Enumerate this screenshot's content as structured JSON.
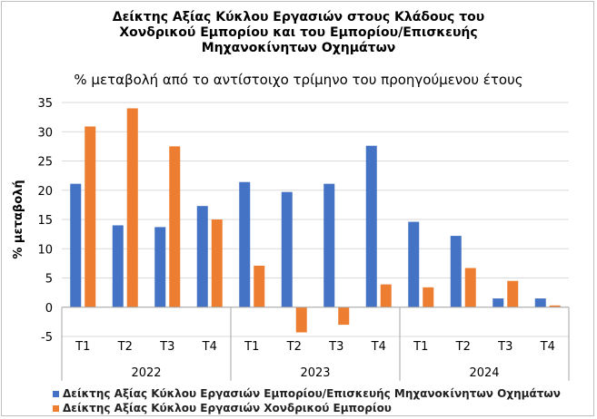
{
  "chart_data": {
    "type": "bar",
    "title_lines": [
      "Δείκτης Αξίας  Κύκλου Εργασιών στους Κλάδους του",
      "Χονδρικού Εμπορίου και του Εμπορίου/Επισκευής",
      "Μηχανοκίνητων Οχημάτων"
    ],
    "subtitle": "% μεταβολή από το αντίστοιχο τρίμηνο του προηγούμενου έτους",
    "ylabel": "% μεταβολή",
    "ylim": [
      -5,
      35
    ],
    "yticks": [
      -5,
      0,
      5,
      10,
      15,
      20,
      25,
      30,
      35
    ],
    "grid": true,
    "legend_position": "bottom",
    "categories": [
      "T1",
      "T2",
      "T3",
      "T4",
      "T1",
      "T2",
      "T3",
      "T4",
      "T1",
      "T2",
      "T3",
      "T4"
    ],
    "groups": [
      {
        "label": "2022",
        "count": 4
      },
      {
        "label": "2023",
        "count": 4
      },
      {
        "label": "2024",
        "count": 4
      }
    ],
    "series": [
      {
        "name": "Δείκτης Αξίας Κύκλου Εργασιών Εμπορίου/Επισκευής Μηχανοκίνητων Οχημάτων",
        "color": "#4472c4",
        "values": [
          21.1,
          14.0,
          13.7,
          17.3,
          21.4,
          19.7,
          21.1,
          27.6,
          14.6,
          12.2,
          1.5,
          1.5
        ]
      },
      {
        "name": "Δείκτης Αξίας Κύκλου Εργασιών Χονδρικού Εμπορίου",
        "color": "#ed7d31",
        "values": [
          30.9,
          34.0,
          27.5,
          15.0,
          7.1,
          -4.3,
          -3.0,
          3.9,
          3.4,
          6.7,
          4.5,
          0.3
        ]
      }
    ]
  }
}
